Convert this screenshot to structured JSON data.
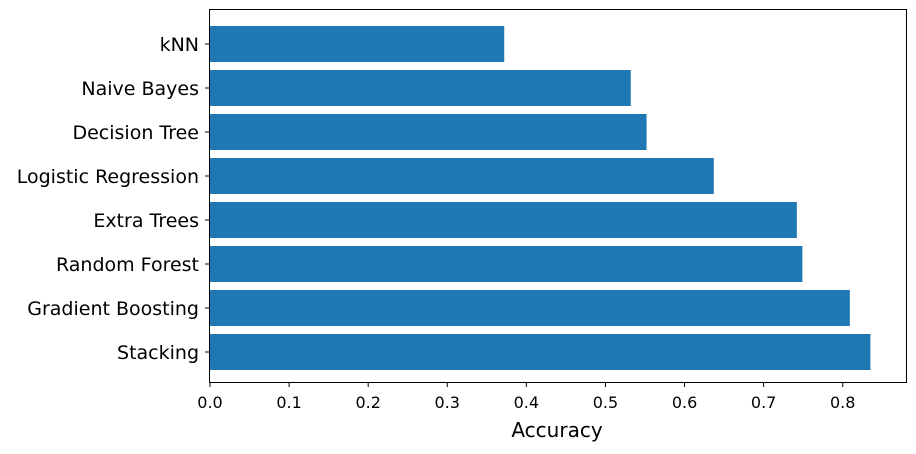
{
  "chart_data": {
    "type": "bar",
    "orientation": "horizontal",
    "categories": [
      "kNN",
      "Naive Bayes",
      "Decision Tree",
      "Logistic Regression",
      "Extra Trees",
      "Random Forest",
      "Gradient Boosting",
      "Stacking"
    ],
    "values": [
      0.372,
      0.532,
      0.552,
      0.637,
      0.742,
      0.749,
      0.809,
      0.835
    ],
    "title": "",
    "xlabel": "Accuracy",
    "ylabel": "",
    "xlim": [
      0.0,
      0.88
    ],
    "xticks": [
      "0.0",
      "0.1",
      "0.2",
      "0.3",
      "0.4",
      "0.5",
      "0.6",
      "0.7",
      "0.8"
    ],
    "bar_color": "#1f77b4",
    "grid": false,
    "legend": "none"
  }
}
